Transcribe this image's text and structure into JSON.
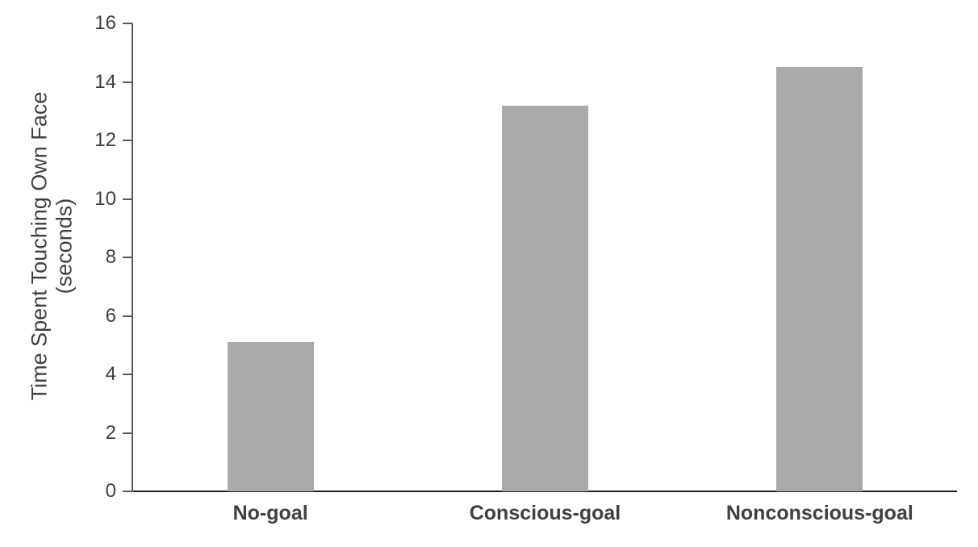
{
  "chart_data": {
    "type": "bar",
    "title": "",
    "categories": [
      "No-goal",
      "Conscious-goal",
      "Nonconscious-goal"
    ],
    "values": [
      5.1,
      13.2,
      14.5
    ],
    "ylabel_line1": "Time Spent Touching Own Face",
    "ylabel_line2": "(seconds)",
    "xlabel": "",
    "ylim": [
      0,
      16
    ],
    "yticks": [
      0,
      2,
      4,
      6,
      8,
      10,
      12,
      14,
      16
    ],
    "grid": false,
    "legend": "none",
    "bar_color": "#ACA9A9",
    "axis_color": "#595959",
    "baseline_color": "#1F1F1F",
    "text_color": "#404040"
  }
}
